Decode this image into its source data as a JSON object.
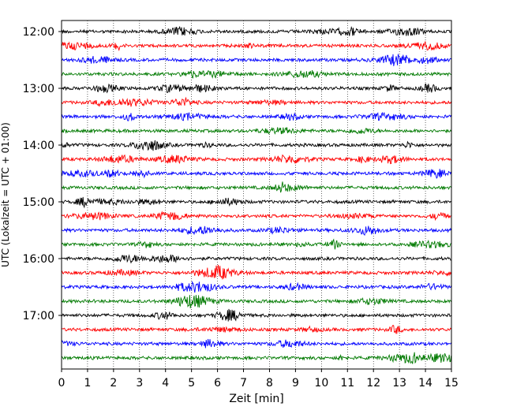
{
  "chart_data": {
    "type": "line",
    "title": "",
    "xlabel": "Zeit  [min]",
    "ylabel": "UTC (Lokalzeit = UTC + 01:00)",
    "xlim": [
      0,
      15
    ],
    "x_ticks": [
      "0",
      "1",
      "2",
      "3",
      "4",
      "5",
      "6",
      "7",
      "8",
      "9",
      "10",
      "11",
      "12",
      "13",
      "14",
      "15"
    ],
    "y_ticks": [
      "12:00",
      "13:00",
      "14:00",
      "15:00",
      "16:00",
      "17:00"
    ],
    "grid": "vertical dotted lines at each minute",
    "trace_colors": [
      "#000000",
      "#ff0000",
      "#0000ff",
      "#007a00"
    ],
    "trace_start_times": [
      "12:00",
      "12:15",
      "12:30",
      "12:45",
      "13:00",
      "13:15",
      "13:30",
      "13:45",
      "14:00",
      "14:15",
      "14:30",
      "14:45",
      "15:00",
      "15:15",
      "15:30",
      "15:45",
      "16:00",
      "16:15",
      "16:30",
      "16:45",
      "17:00",
      "17:15",
      "17:30",
      "17:45"
    ],
    "trace_minutes": 15,
    "series_note": "Helicorder-style seismogram: 24 traces of 15 minutes each; colors cycle black, red, blue, green"
  }
}
